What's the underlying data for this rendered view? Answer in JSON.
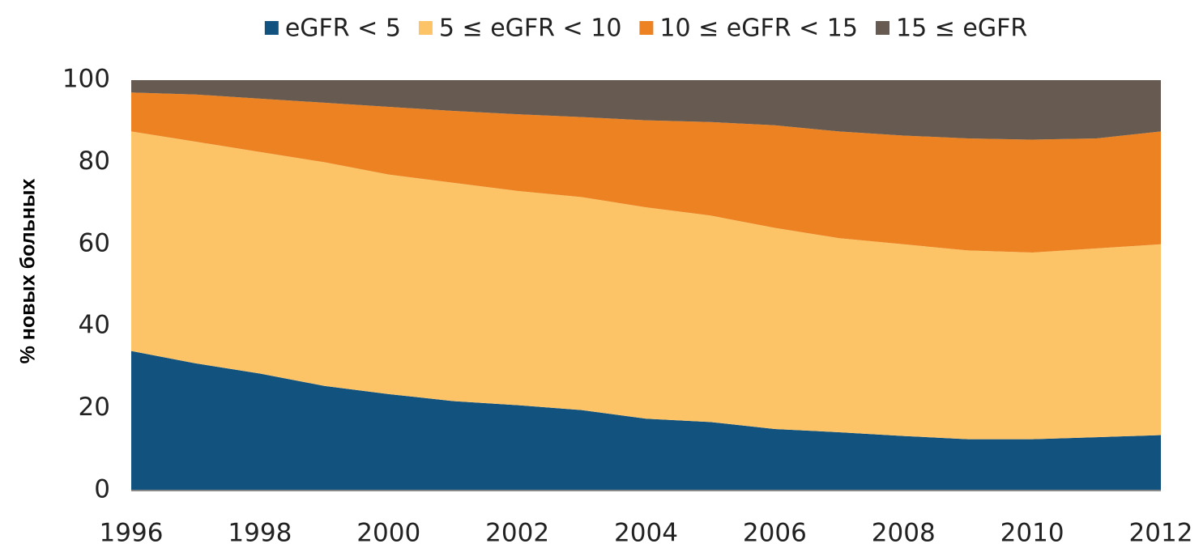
{
  "chart_data": {
    "type": "stacked_area",
    "ylabel": "% новых больных",
    "x": [
      1996,
      1997,
      1998,
      1999,
      2000,
      2001,
      2002,
      2003,
      2004,
      2005,
      2006,
      2007,
      2008,
      2009,
      2010,
      2011,
      2012
    ],
    "xlim": [
      1996,
      2012
    ],
    "xticks": [
      1996,
      1998,
      2000,
      2002,
      2004,
      2006,
      2008,
      2010,
      2012
    ],
    "ylim": [
      0,
      100
    ],
    "yticks": [
      0,
      20,
      40,
      60,
      80,
      100
    ],
    "grid": false,
    "legend": "top",
    "series": [
      {
        "name": "eGFR < 5",
        "color": "#11527f",
        "values": [
          34,
          31,
          28.5,
          25.5,
          23.5,
          21.8,
          20.8,
          19.6,
          17.5,
          16.7,
          15,
          14.2,
          13.3,
          12.5,
          12.5,
          13,
          13.5
        ]
      },
      {
        "name": "5 ≤ eGFR < 10",
        "color": "#fdc467",
        "values": [
          53.5,
          54,
          54,
          54.5,
          53.5,
          53.2,
          52.2,
          51.9,
          51.5,
          50.3,
          49,
          47.3,
          46.7,
          46,
          45.5,
          46,
          46.5
        ]
      },
      {
        "name": "10 ≤ eGFR < 15",
        "color": "#ec8222",
        "values": [
          9.5,
          11.5,
          13,
          14.5,
          16.5,
          17.5,
          18.7,
          19.5,
          21.2,
          22.8,
          25,
          26,
          26.5,
          27.3,
          27.5,
          26.8,
          27.5
        ]
      },
      {
        "name": "15 ≤ eGFR",
        "color": "#675a50",
        "values": [
          3,
          3.5,
          4.5,
          5.5,
          6.5,
          7.5,
          8.3,
          9,
          9.8,
          10.2,
          11,
          12.5,
          13.5,
          14.2,
          14.5,
          14.2,
          12.5
        ]
      }
    ]
  }
}
